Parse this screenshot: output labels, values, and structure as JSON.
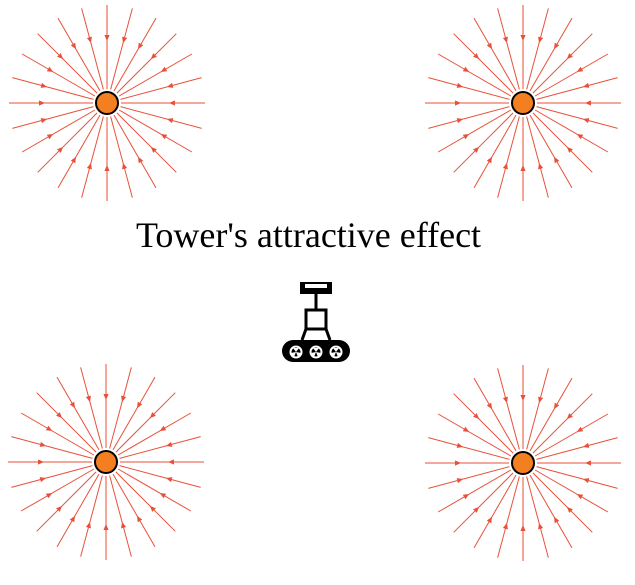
{
  "caption": "Tower's attractive effect",
  "towers": [
    {
      "id": "top-left"
    },
    {
      "id": "top-right"
    },
    {
      "id": "bottom-left"
    },
    {
      "id": "bottom-right"
    }
  ],
  "field": {
    "line_count": 24,
    "direction": "inward"
  },
  "colors": {
    "field_line": "#e8503a",
    "tower_fill": "#f47f20",
    "tower_stroke": "#000000",
    "robot": "#000000",
    "background": "#ffffff"
  },
  "icons": {
    "tower": "filled-circle",
    "robot": "tracked-robot-icon"
  }
}
